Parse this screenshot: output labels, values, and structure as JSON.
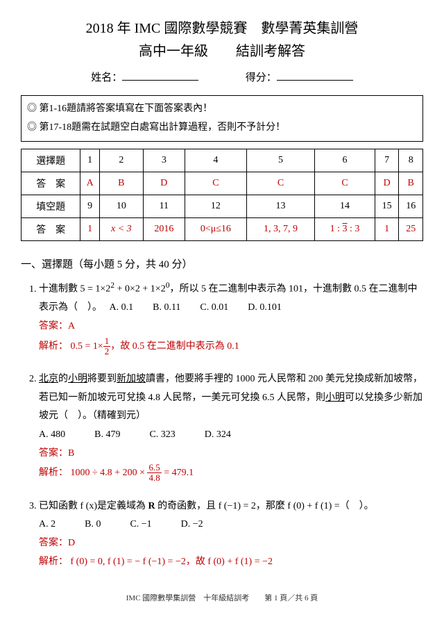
{
  "header": {
    "title1": "2018 年 IMC 國際數學競賽　數學菁英集訓營",
    "title2": "高中一年級　　結訓考解答",
    "name_label": "姓名：",
    "score_label": "得分："
  },
  "instructions": {
    "line1": "第1-16題請將答案填寫在下面答案表內！",
    "line2": "第17-18題需在試題空白處寫出計算過程，否則不予計分！",
    "bullet": "◎"
  },
  "table": {
    "row1_label": "選擇題",
    "row1": [
      "1",
      "2",
      "3",
      "4",
      "5",
      "6",
      "7",
      "8"
    ],
    "row2_label": "答　案",
    "row2": [
      "A",
      "B",
      "D",
      "C",
      "C",
      "C",
      "D",
      "B"
    ],
    "row3_label": "填空題",
    "row3": [
      "9",
      "10",
      "11",
      "12",
      "13",
      "14",
      "15",
      "16"
    ],
    "row4_label": "答　案",
    "row4": [
      "1",
      "x < 3",
      "2016",
      "0<μ≤16",
      "1, 3, 7, 9",
      "1 : √3 : 3",
      "1",
      "25"
    ],
    "red_color": "#c00000"
  },
  "section1": {
    "heading": "一、選擇題（每小題 5 分，共 40 分）",
    "q1": {
      "text_a": "十進制數 5 = 1×2",
      "sup1": "2",
      "text_b": " + 0×2 + 1×2",
      "sup2": "0",
      "text_c": "，所以 5 在二進制中表示為 101，十進制數 0.5 在二進制中表示為（　）。",
      "opts": "A. 0.1　　B. 0.11　　C. 0.01　　D. 0.101",
      "ans_label": "答案：A",
      "sol_label": "解析：",
      "sol_a": "0.5 = 1×",
      "frac_n": "1",
      "frac_d": "2",
      "sol_b": "，故 0.5 在二進制中表示為 0.1"
    },
    "q2": {
      "text_a": "北京",
      "text_b": "的",
      "text_c": "小明",
      "text_d": "將要到",
      "text_e": "新加坡",
      "text_f": "讀書，他要將手裡的 1000 元人民幣和 200 美元兌換成新加坡幣，若已知一新加坡元可兌換 4.8 人民幣，一美元可兌換 6.5 人民幣，則",
      "text_g": "小明",
      "text_h": "可以兌換多少新加坡元（　）。（精確到元）",
      "opts": "A. 480　　　B. 479　　　C. 323　　　D. 324",
      "ans_label": "答案：B",
      "sol_label": "解析：",
      "sol_a": "1000 ÷ 4.8 + 200 × ",
      "frac_n": "6.5",
      "frac_d": "4.8",
      "sol_b": " = 479.1"
    },
    "q3": {
      "text_a": "已知函數 f (x)是定義域為 ",
      "bold": "R",
      "text_b": " 的奇函數，且 f (−1) = 2，那麼 f (0) + f (1) =（　）。",
      "opts": "A. 2　　　B. 0　　　C. −1　　　D. −2",
      "ans_label": "答案：D",
      "sol_label": "解析：",
      "sol_a": " f (0) = 0, f (1) = − f (−1) = −2，",
      "sol_b": "故 f (0) + f (1) = −2"
    }
  },
  "footer": {
    "text": "IMC 國際數學集訓營　十年級結訓考　　第 1 頁／共 6 頁"
  }
}
